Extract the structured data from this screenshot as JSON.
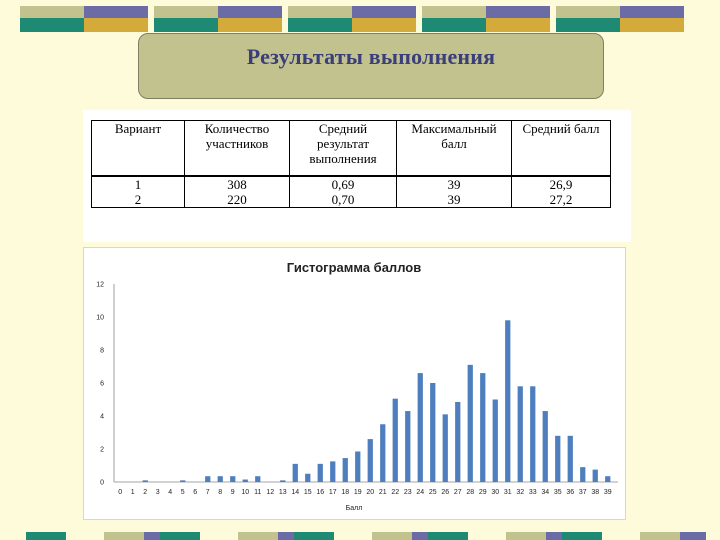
{
  "slide_title": "Результаты выполнения",
  "deco_colors": {
    "green": "#1f8a73",
    "slate": "#6b6ba6",
    "tan": "#c2c28e",
    "gold": "#d4aa3a"
  },
  "results_table": {
    "headers": [
      "Вариант",
      "Количество участников",
      "Средний результат выполнения",
      "Максимальный балл",
      "Средний балл"
    ],
    "rows": [
      [
        "1",
        "308",
        "0,69",
        "39",
        "26,9"
      ],
      [
        "2",
        "220",
        "0,70",
        "39",
        "27,2"
      ]
    ]
  },
  "chart_data": {
    "type": "bar",
    "title": "Гистограмма баллов",
    "xlabel": "Балл",
    "ylabel": "",
    "ylim": [
      0,
      12
    ],
    "yticks": [
      0,
      2,
      4,
      6,
      8,
      10,
      12
    ],
    "categories": [
      "0",
      "1",
      "2",
      "3",
      "4",
      "5",
      "6",
      "7",
      "8",
      "9",
      "10",
      "11",
      "12",
      "13",
      "14",
      "15",
      "16",
      "17",
      "18",
      "19",
      "20",
      "21",
      "22",
      "23",
      "24",
      "25",
      "26",
      "27",
      "28",
      "29",
      "30",
      "31",
      "32",
      "33",
      "34",
      "35",
      "36",
      "37",
      "38",
      "39"
    ],
    "values": [
      0,
      0,
      0.1,
      0,
      0,
      0.1,
      0,
      0.35,
      0.35,
      0.35,
      0.15,
      0.35,
      0,
      0.1,
      1.1,
      0.5,
      1.1,
      1.25,
      1.45,
      1.85,
      2.6,
      3.5,
      5.05,
      4.3,
      6.6,
      6.0,
      4.1,
      4.85,
      7.1,
      6.6,
      5.0,
      9.8,
      5.8,
      5.8,
      4.3,
      2.8,
      2.8,
      0.9,
      0.75,
      0.35
    ],
    "bar_color": "#4f7ebf",
    "grid": false
  }
}
